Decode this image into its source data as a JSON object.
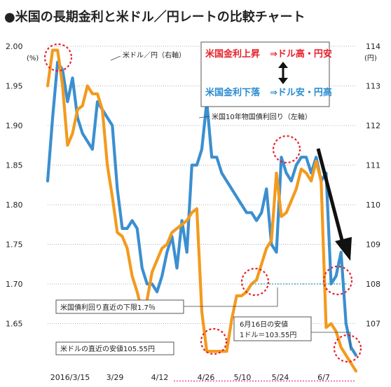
{
  "title": "●米国の長期金利と米ドル／円レートの比較チャート",
  "chart_data": {
    "type": "line",
    "title": "●米国の長期金利と米ドル／円レートの比較チャート",
    "x_ticks": [
      "2016/3/15",
      "3/29",
      "4/12",
      "4/26",
      "5/10",
      "5/24",
      "6/7"
    ],
    "y_left": {
      "unit": "(%)",
      "ylim": [
        1.6,
        2.0
      ],
      "ticks": [
        "2.00",
        "1.95",
        "1.90",
        "1.85",
        "1.80",
        "1.75",
        "1.70",
        "1.65"
      ]
    },
    "y_right": {
      "unit": "(円)",
      "ylim": [
        106,
        114
      ],
      "ticks": [
        "114",
        "113",
        "112",
        "111",
        "110",
        "109",
        "108",
        "107"
      ]
    },
    "series": [
      {
        "name": "米国10年物国債利回り（左軸）",
        "axis": "left",
        "color": "#3b8fd0",
        "values": [
          1.83,
          1.91,
          1.98,
          1.97,
          1.93,
          1.96,
          1.91,
          1.89,
          1.88,
          1.87,
          1.93,
          1.92,
          1.91,
          1.9,
          1.82,
          1.77,
          1.77,
          1.78,
          1.77,
          1.72,
          1.7,
          1.7,
          1.69,
          1.71,
          1.74,
          1.76,
          1.72,
          1.78,
          1.74,
          1.85,
          1.85,
          1.87,
          1.93,
          1.86,
          1.86,
          1.84,
          1.83,
          1.82,
          1.81,
          1.8,
          1.79,
          1.79,
          1.78,
          1.79,
          1.82,
          1.75,
          1.74,
          1.86,
          1.84,
          1.83,
          1.85,
          1.86,
          1.86,
          1.84,
          1.86,
          1.83,
          1.84,
          1.7,
          1.71,
          1.74,
          1.65,
          1.62,
          1.61
        ]
      },
      {
        "name": "米ドル／円（右軸）",
        "axis": "right",
        "color": "#f39a1e",
        "values": [
          113.0,
          113.9,
          113.9,
          113.0,
          111.5,
          111.8,
          112.4,
          112.5,
          113.0,
          112.8,
          112.8,
          112.4,
          111.0,
          110.2,
          109.3,
          109.2,
          108.9,
          108.2,
          107.8,
          107.3,
          107.6,
          108.3,
          108.6,
          108.9,
          109.0,
          109.3,
          109.4,
          109.5,
          109.6,
          109.8,
          109.9,
          107.3,
          106.3,
          106.3,
          106.3,
          106.3,
          106.3,
          107.1,
          107.7,
          107.7,
          107.8,
          108.0,
          108.1,
          108.5,
          108.9,
          109.1,
          110.8,
          109.7,
          109.8,
          110.1,
          110.4,
          110.9,
          110.8,
          110.6,
          111.1,
          110.6,
          106.9,
          107.0,
          106.8,
          106.4,
          106.2,
          106.0,
          105.8
        ]
      }
    ],
    "annotations": {
      "line_usd": "米ドル／円（右軸）",
      "line_rate": "米国10年物国債利回り（左軸）",
      "legend_row1_left": "米国金利上昇",
      "legend_row1_right": "⇒ドル高・円安",
      "legend_row2_left": "米国金利下落",
      "legend_row2_right": "⇒ドル安・円高",
      "support_rate": "米国債利回り直近の下限1.7％",
      "low_usd": "米ドルの直近の安値105.55円",
      "jun16_line1": "6月16日の安値",
      "jun16_line2": "1ドル＝103.55円"
    },
    "reference_lines": {
      "rate_support_left_axis": 1.7,
      "usd_low_right_axis": 105.55
    },
    "grid": "horizontal dotted"
  },
  "colors": {
    "rate": "#3b8fd0",
    "usd": "#f39a1e",
    "highlight_red": "#e8202a",
    "legend_blue": "#2a8bd0",
    "grid": "#9a9a9a"
  }
}
